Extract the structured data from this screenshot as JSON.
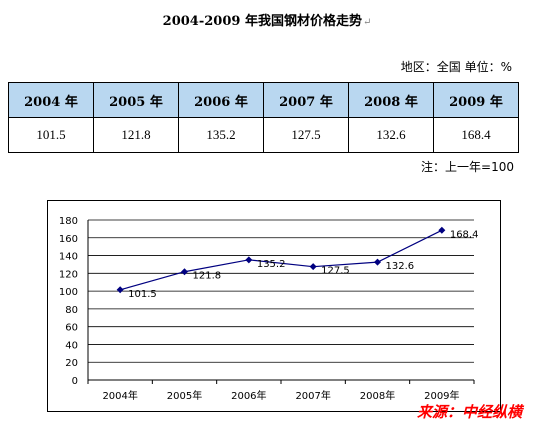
{
  "title": "2004-2009 年我国钢材价格走势",
  "region_unit": "地区：全国  单位：%",
  "table": {
    "headers": [
      "2004 年",
      "2005 年",
      "2006 年",
      "2007 年",
      "2008 年",
      "2009 年"
    ],
    "values": [
      "101.5",
      "121.8",
      "135.2",
      "127.5",
      "132.6",
      "168.4"
    ]
  },
  "note": "注：上一年=100",
  "chart_data": {
    "type": "line",
    "categories": [
      "2004年",
      "2005年",
      "2006年",
      "2007年",
      "2008年",
      "2009年"
    ],
    "series": [
      {
        "values": [
          101.5,
          121.8,
          135.2,
          127.5,
          132.6,
          168.4
        ]
      }
    ],
    "data_labels": [
      "101.5",
      "121.8",
      "135.2",
      "127.5",
      "132.6",
      "168.4"
    ],
    "ylim": [
      0,
      180
    ],
    "yticks": [
      "0",
      "20",
      "40",
      "60",
      "80",
      "100",
      "120",
      "140",
      "160",
      "180"
    ],
    "grid": true,
    "colors": {
      "line": "#000080",
      "grid": "#000000"
    }
  },
  "source": "来源：中经纵横"
}
